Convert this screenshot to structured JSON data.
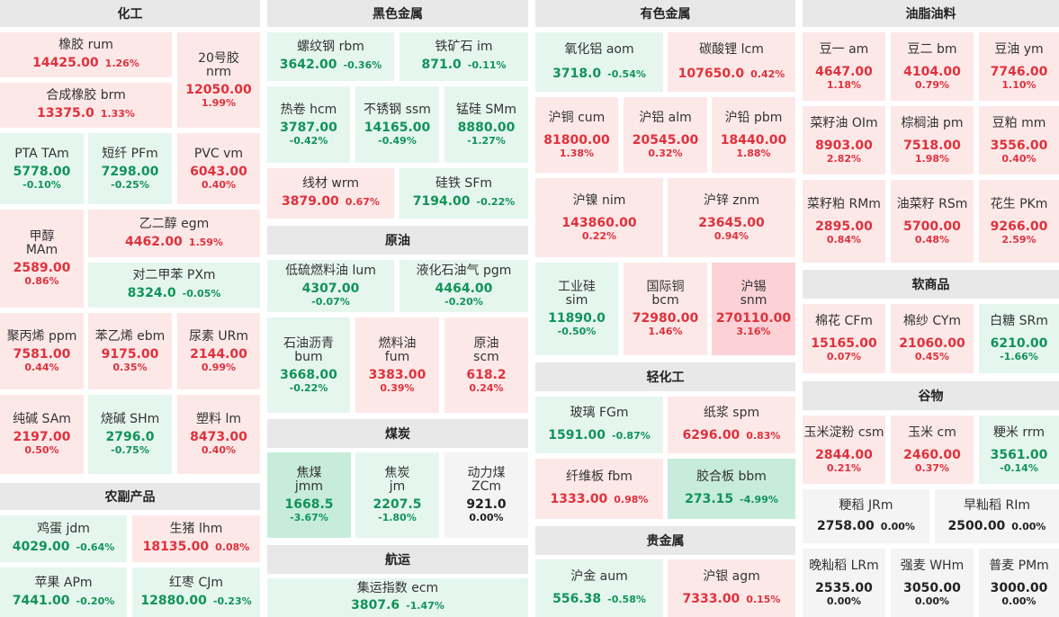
{
  "colors": {
    "up": "#e0313c",
    "down": "#11935a",
    "up_bg": "#fde8e8",
    "down_bg": "#e5f6ee",
    "header_bg": "#e8e8e8"
  },
  "sections": {
    "chem": "化工",
    "agri": "农副产品",
    "ferrous": "黑色金属",
    "crude": "原油",
    "coal": "煤炭",
    "shipping": "航运",
    "nonferrous": "有色金属",
    "light": "轻化工",
    "precious": "贵金属",
    "oils": "油脂油料",
    "soft": "软商品",
    "grain": "谷物"
  },
  "t": {
    "rum": {
      "name": "橡胶  rum",
      "price": "14425.00",
      "pct": "1.26%"
    },
    "nrm": {
      "name": "20号胶",
      "code": "nrm",
      "price": "12050.00",
      "pct": "1.99%"
    },
    "brm": {
      "name": "合成橡胶  brm",
      "price": "13375.0",
      "pct": "1.33%"
    },
    "TAm": {
      "name": "PTA  TAm",
      "price": "5778.00",
      "pct": "-0.10%"
    },
    "PFm": {
      "name": "短纤  PFm",
      "price": "7298.00",
      "pct": "-0.25%"
    },
    "vm": {
      "name": "PVC  vm",
      "price": "6043.00",
      "pct": "0.40%"
    },
    "MAm": {
      "name": "甲醇",
      "code": "MAm",
      "price": "2589.00",
      "pct": "0.86%"
    },
    "egm": {
      "name": "乙二醇  egm",
      "price": "4462.00",
      "pct": "1.59%"
    },
    "PXm": {
      "name": "对二甲苯  PXm",
      "price": "8324.0",
      "pct": "-0.05%"
    },
    "ppm": {
      "name": "聚丙烯  ppm",
      "price": "7581.00",
      "pct": "0.44%"
    },
    "ebm": {
      "name": "苯乙烯  ebm",
      "price": "9175.00",
      "pct": "0.35%"
    },
    "URm": {
      "name": "尿素  URm",
      "price": "2144.00",
      "pct": "0.99%"
    },
    "SAm": {
      "name": "纯碱  SAm",
      "price": "2197.00",
      "pct": "0.50%"
    },
    "SHm": {
      "name": "烧碱  SHm",
      "price": "2796.0",
      "pct": "-0.75%"
    },
    "lm": {
      "name": "塑料  lm",
      "price": "8473.00",
      "pct": "0.40%"
    },
    "jdm": {
      "name": "鸡蛋  jdm",
      "price": "4029.00",
      "pct": "-0.64%"
    },
    "lhm": {
      "name": "生猪  lhm",
      "price": "18135.00",
      "pct": "0.08%"
    },
    "APm": {
      "name": "苹果  APm",
      "price": "7441.00",
      "pct": "-0.20%"
    },
    "CJm": {
      "name": "红枣  CJm",
      "price": "12880.00",
      "pct": "-0.23%"
    },
    "rbm": {
      "name": "螺纹钢  rbm",
      "price": "3642.00",
      "pct": "-0.36%"
    },
    "im": {
      "name": "铁矿石  im",
      "price": "871.0",
      "pct": "-0.11%"
    },
    "hcm": {
      "name": "热卷  hcm",
      "price": "3787.00",
      "pct": "-0.42%"
    },
    "ssm": {
      "name": "不锈钢  ssm",
      "price": "14165.00",
      "pct": "-0.49%"
    },
    "SMm": {
      "name": "锰硅  SMm",
      "price": "8880.00",
      "pct": "-1.27%"
    },
    "wrm": {
      "name": "线材  wrm",
      "price": "3879.00",
      "pct": "0.67%"
    },
    "SFm": {
      "name": "硅铁  SFm",
      "price": "7194.00",
      "pct": "-0.22%"
    },
    "lum": {
      "name": "低硫燃料油  lum",
      "price": "4307.00",
      "pct": "-0.07%"
    },
    "pgm": {
      "name": "液化石油气  pgm",
      "price": "4464.00",
      "pct": "-0.20%"
    },
    "bum": {
      "name": "石油沥青",
      "code": "bum",
      "price": "3668.00",
      "pct": "-0.22%"
    },
    "fum": {
      "name": "燃料油",
      "code": "fum",
      "price": "3383.00",
      "pct": "0.39%"
    },
    "scm": {
      "name": "原油",
      "code": "scm",
      "price": "618.2",
      "pct": "0.24%"
    },
    "jmm": {
      "name": "焦煤",
      "code": "jmm",
      "price": "1668.5",
      "pct": "-3.67%"
    },
    "jm": {
      "name": "焦炭",
      "code": "jm",
      "price": "2207.5",
      "pct": "-1.80%"
    },
    "ZCm": {
      "name": "动力煤",
      "code": "ZCm",
      "price": "921.0",
      "pct": "0.00%"
    },
    "ecm": {
      "name": "集运指数  ecm",
      "price": "3807.6",
      "pct": "-1.47%"
    },
    "aom": {
      "name": "氧化铝  aom",
      "price": "3718.0",
      "pct": "-0.54%"
    },
    "lcm": {
      "name": "碳酸锂  lcm",
      "price": "107650.0",
      "pct": "0.42%"
    },
    "cum": {
      "name": "沪铜  cum",
      "price": "81800.00",
      "pct": "1.38%"
    },
    "alm": {
      "name": "沪铝  alm",
      "price": "20545.00",
      "pct": "0.32%"
    },
    "pbm": {
      "name": "沪铅  pbm",
      "price": "18440.00",
      "pct": "1.88%"
    },
    "nim": {
      "name": "沪镍  nim",
      "price": "143860.00",
      "pct": "0.22%"
    },
    "znm": {
      "name": "沪锌  znm",
      "price": "23645.00",
      "pct": "0.94%"
    },
    "sim": {
      "name": "工业硅",
      "code": "sim",
      "price": "11890.0",
      "pct": "-0.50%"
    },
    "bcm": {
      "name": "国际铜",
      "code": "bcm",
      "price": "72980.00",
      "pct": "1.46%"
    },
    "snm": {
      "name": "沪锡",
      "code": "snm",
      "price": "270110.00",
      "pct": "3.16%"
    },
    "FGm": {
      "name": "玻璃  FGm",
      "price": "1591.00",
      "pct": "-0.87%"
    },
    "spm": {
      "name": "纸浆  spm",
      "price": "6296.00",
      "pct": "0.83%"
    },
    "fbm": {
      "name": "纤维板  fbm",
      "price": "1333.00",
      "pct": "0.98%"
    },
    "bbm": {
      "name": "胶合板  bbm",
      "price": "273.15",
      "pct": "-4.99%"
    },
    "aum": {
      "name": "沪金  aum",
      "price": "556.38",
      "pct": "-0.58%"
    },
    "agm": {
      "name": "沪银  agm",
      "price": "7333.00",
      "pct": "0.15%"
    },
    "am": {
      "name": "豆一  am",
      "price": "4647.00",
      "pct": "1.18%"
    },
    "bm": {
      "name": "豆二  bm",
      "price": "4104.00",
      "pct": "0.79%"
    },
    "ym": {
      "name": "豆油  ym",
      "price": "7746.00",
      "pct": "1.10%"
    },
    "OIm": {
      "name": "菜籽油  OIm",
      "price": "8903.00",
      "pct": "2.82%"
    },
    "pm": {
      "name": "棕榈油  pm",
      "price": "7518.00",
      "pct": "1.98%"
    },
    "mm": {
      "name": "豆粕  mm",
      "price": "3556.00",
      "pct": "0.40%"
    },
    "RMm": {
      "name": "菜籽粕  RMm",
      "price": "2895.00",
      "pct": "0.84%"
    },
    "RSm": {
      "name": "油菜籽  RSm",
      "price": "5700.00",
      "pct": "0.48%"
    },
    "PKm": {
      "name": "花生  PKm",
      "price": "9266.00",
      "pct": "2.59%"
    },
    "CFm": {
      "name": "棉花  CFm",
      "price": "15165.00",
      "pct": "0.07%"
    },
    "CYm": {
      "name": "棉纱  CYm",
      "price": "21060.00",
      "pct": "0.45%"
    },
    "SRm": {
      "name": "白糖  SRm",
      "price": "6210.00",
      "pct": "-1.66%"
    },
    "csm": {
      "name": "玉米淀粉  csm",
      "price": "2844.00",
      "pct": "0.21%"
    },
    "cm": {
      "name": "玉米  cm",
      "price": "2460.00",
      "pct": "0.37%"
    },
    "rrm": {
      "name": "粳米  rrm",
      "price": "3561.00",
      "pct": "-0.14%"
    },
    "JRm": {
      "name": "粳稻  JRm",
      "price": "2758.00",
      "pct": "0.00%"
    },
    "RIm": {
      "name": "早籼稻  RIm",
      "price": "2500.00",
      "pct": "0.00%"
    },
    "LRm": {
      "name": "晚籼稻  LRm",
      "price": "2535.00",
      "pct": "0.00%"
    },
    "WHm": {
      "name": "强麦  WHm",
      "price": "3050.00",
      "pct": "0.00%"
    },
    "PMm": {
      "name": "普麦  PMm",
      "price": "3000.00",
      "pct": "0.00%"
    }
  }
}
